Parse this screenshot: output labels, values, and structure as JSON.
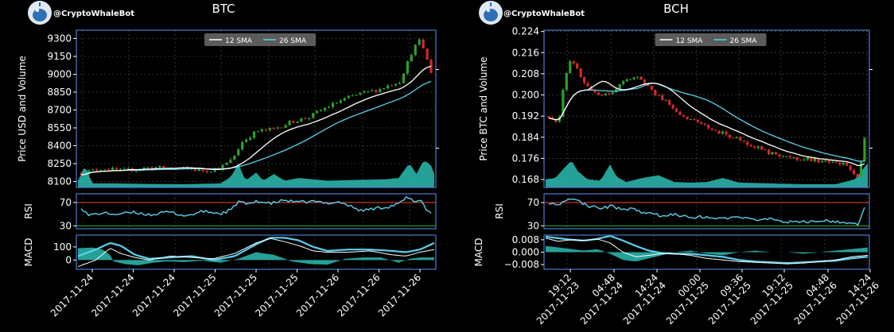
{
  "colors": {
    "background": "#000000",
    "frame": "#4a7bd0",
    "text": "#ffffff",
    "grid": "#5a5a5a",
    "up": "#2ca02c",
    "down": "#d62728",
    "sma12": "#ffffff",
    "sma26": "#5ad1ee",
    "volume": "#29b2a8",
    "rsi_line": "#5ad1ee",
    "rsi_overbought": "#c0392b",
    "rsi_oversold": "#2ca02c",
    "macd_hist": "#29b2a8",
    "macd_line": "#ffffff",
    "signal_line": "#5ad1ee"
  },
  "icons": {
    "logo": "whale-robot-logo"
  },
  "chart_data": [
    {
      "id": "btc",
      "type": "candlestick",
      "brand": "@CryptoWhaleBot",
      "title": "BTC",
      "ylabel": "Price USD and Volume",
      "yticks": [
        8100,
        8250,
        8400,
        8550,
        8700,
        8850,
        9000,
        9150,
        9300
      ],
      "ylim": [
        8050,
        9370
      ],
      "legend": {
        "position": "top-center",
        "entries": [
          "12 SMA",
          "26 SMA"
        ]
      },
      "xtick_labels": [
        "2017-11-24",
        "2017-11-24",
        "2017-11-24",
        "2017-11-25",
        "2017-11-25",
        "2017-11-25",
        "2017-11-26",
        "2017-11-26",
        "2017-11-26"
      ],
      "rsi": {
        "label": "RSI",
        "yticks": [
          30,
          70
        ],
        "ylim": [
          25,
          85
        ],
        "overbought": 70,
        "oversold": 30
      },
      "macd": {
        "label": "MACD",
        "yticks": [
          0,
          100
        ],
        "ylim": [
          -70,
          190
        ]
      },
      "price_path": [
        [
          0,
          8170
        ],
        [
          0.06,
          8210
        ],
        [
          0.12,
          8190
        ],
        [
          0.2,
          8220
        ],
        [
          0.28,
          8210
        ],
        [
          0.36,
          8190
        ],
        [
          0.4,
          8220
        ],
        [
          0.43,
          8280
        ],
        [
          0.46,
          8430
        ],
        [
          0.5,
          8520
        ],
        [
          0.55,
          8540
        ],
        [
          0.6,
          8600
        ],
        [
          0.65,
          8640
        ],
        [
          0.7,
          8720
        ],
        [
          0.75,
          8790
        ],
        [
          0.8,
          8840
        ],
        [
          0.85,
          8870
        ],
        [
          0.88,
          8910
        ],
        [
          0.91,
          8940
        ],
        [
          0.93,
          9080
        ],
        [
          0.95,
          9220
        ],
        [
          0.97,
          9290
        ],
        [
          0.985,
          9150
        ],
        [
          1.0,
          9020
        ]
      ],
      "volume_path": [
        [
          0,
          0.25
        ],
        [
          0.02,
          0.8
        ],
        [
          0.04,
          0.15
        ],
        [
          0.1,
          0.15
        ],
        [
          0.2,
          0.13
        ],
        [
          0.3,
          0.12
        ],
        [
          0.4,
          0.15
        ],
        [
          0.43,
          0.4
        ],
        [
          0.45,
          0.9
        ],
        [
          0.47,
          0.25
        ],
        [
          0.5,
          0.55
        ],
        [
          0.52,
          0.25
        ],
        [
          0.55,
          0.5
        ],
        [
          0.58,
          0.25
        ],
        [
          0.62,
          0.35
        ],
        [
          0.7,
          0.25
        ],
        [
          0.78,
          0.28
        ],
        [
          0.86,
          0.3
        ],
        [
          0.9,
          0.35
        ],
        [
          0.93,
          0.9
        ],
        [
          0.95,
          0.5
        ],
        [
          0.97,
          1.0
        ],
        [
          0.99,
          0.85
        ],
        [
          1.0,
          0.5
        ]
      ],
      "rsi_path": [
        [
          0,
          62
        ],
        [
          0.02,
          48
        ],
        [
          0.06,
          52
        ],
        [
          0.1,
          50
        ],
        [
          0.15,
          53
        ],
        [
          0.2,
          49
        ],
        [
          0.25,
          54
        ],
        [
          0.3,
          47
        ],
        [
          0.35,
          55
        ],
        [
          0.4,
          51
        ],
        [
          0.43,
          58
        ],
        [
          0.45,
          72
        ],
        [
          0.48,
          66
        ],
        [
          0.5,
          73
        ],
        [
          0.54,
          68
        ],
        [
          0.58,
          74
        ],
        [
          0.62,
          70
        ],
        [
          0.66,
          72
        ],
        [
          0.7,
          69
        ],
        [
          0.74,
          71
        ],
        [
          0.78,
          61
        ],
        [
          0.8,
          56
        ],
        [
          0.84,
          60
        ],
        [
          0.88,
          63
        ],
        [
          0.91,
          68
        ],
        [
          0.93,
          79
        ],
        [
          0.95,
          72
        ],
        [
          0.97,
          75
        ],
        [
          0.99,
          55
        ],
        [
          1.0,
          52
        ]
      ],
      "macd_hist_path": [
        [
          0,
          90
        ],
        [
          0.04,
          95
        ],
        [
          0.07,
          80
        ],
        [
          0.09,
          40
        ],
        [
          0.1,
          -10
        ],
        [
          0.13,
          -30
        ],
        [
          0.17,
          -40
        ],
        [
          0.21,
          -20
        ],
        [
          0.25,
          -10
        ],
        [
          0.3,
          -15
        ],
        [
          0.35,
          -5
        ],
        [
          0.4,
          -20
        ],
        [
          0.45,
          10
        ],
        [
          0.5,
          60
        ],
        [
          0.55,
          40
        ],
        [
          0.6,
          -10
        ],
        [
          0.65,
          -30
        ],
        [
          0.7,
          -35
        ],
        [
          0.75,
          10
        ],
        [
          0.8,
          20
        ],
        [
          0.85,
          20
        ],
        [
          0.9,
          -20
        ],
        [
          0.93,
          10
        ],
        [
          0.96,
          20
        ],
        [
          1.0,
          20
        ]
      ],
      "macd_line_path": [
        [
          0,
          -50
        ],
        [
          0.05,
          0
        ],
        [
          0.09,
          90
        ],
        [
          0.12,
          50
        ],
        [
          0.16,
          20
        ],
        [
          0.2,
          0
        ],
        [
          0.26,
          30
        ],
        [
          0.32,
          20
        ],
        [
          0.38,
          10
        ],
        [
          0.44,
          50
        ],
        [
          0.5,
          130
        ],
        [
          0.54,
          165
        ],
        [
          0.58,
          140
        ],
        [
          0.62,
          110
        ],
        [
          0.66,
          70
        ],
        [
          0.7,
          60
        ],
        [
          0.76,
          60
        ],
        [
          0.82,
          70
        ],
        [
          0.88,
          40
        ],
        [
          0.92,
          30
        ],
        [
          0.96,
          60
        ],
        [
          1.0,
          80
        ]
      ],
      "signal_line_path": [
        [
          0,
          30
        ],
        [
          0.05,
          80
        ],
        [
          0.09,
          130
        ],
        [
          0.12,
          110
        ],
        [
          0.16,
          40
        ],
        [
          0.2,
          10
        ],
        [
          0.26,
          20
        ],
        [
          0.32,
          30
        ],
        [
          0.38,
          0
        ],
        [
          0.44,
          30
        ],
        [
          0.5,
          120
        ],
        [
          0.54,
          170
        ],
        [
          0.58,
          170
        ],
        [
          0.62,
          150
        ],
        [
          0.66,
          100
        ],
        [
          0.7,
          70
        ],
        [
          0.76,
          80
        ],
        [
          0.82,
          80
        ],
        [
          0.88,
          70
        ],
        [
          0.92,
          60
        ],
        [
          0.96,
          80
        ],
        [
          1.0,
          130
        ]
      ]
    },
    {
      "id": "bch",
      "type": "candlestick",
      "brand": "@CryptoWhaleBot",
      "title": "BCH",
      "ylabel": "Price BTC and Volume",
      "yticks": [
        0.168,
        0.176,
        0.184,
        0.192,
        0.2,
        0.208,
        0.216,
        0.224
      ],
      "ytick_labels": [
        "0.168",
        "0.176",
        "0.184",
        "0.192",
        "0.200",
        "0.208",
        "0.216",
        "0.224"
      ],
      "ylim": [
        0.165,
        0.2245
      ],
      "legend": {
        "position": "top-center",
        "entries": [
          "12 SMA",
          "26 SMA"
        ]
      },
      "xtick_labels": [
        "19:12\n2017-11-23",
        "04:48\n2017-11-24",
        "14:24\n2017-11-24",
        "00:00\n2017-11-25",
        "09:36\n2017-11-25",
        "19:12\n2017-11-25",
        "04:48\n2017-11-26",
        "14:24\n2017-11-26"
      ],
      "rsi": {
        "label": "RSI",
        "yticks": [
          30,
          70
        ],
        "ylim": [
          25,
          85
        ],
        "overbought": 70,
        "oversold": 30
      },
      "macd": {
        "label": "MACD",
        "yticks": [
          0.008,
          0.0,
          -0.008
        ],
        "ytick_labels": [
          "0.008",
          "0.000",
          "−0.008"
        ],
        "ylim": [
          -0.011,
          0.011
        ]
      },
      "price_path": [
        [
          0,
          0.192
        ],
        [
          0.03,
          0.189
        ],
        [
          0.05,
          0.206
        ],
        [
          0.07,
          0.213
        ],
        [
          0.09,
          0.21
        ],
        [
          0.12,
          0.203
        ],
        [
          0.15,
          0.2
        ],
        [
          0.18,
          0.2
        ],
        [
          0.21,
          0.202
        ],
        [
          0.24,
          0.205
        ],
        [
          0.27,
          0.207
        ],
        [
          0.3,
          0.205
        ],
        [
          0.34,
          0.2
        ],
        [
          0.38,
          0.197
        ],
        [
          0.42,
          0.192
        ],
        [
          0.46,
          0.19
        ],
        [
          0.5,
          0.188
        ],
        [
          0.54,
          0.186
        ],
        [
          0.58,
          0.184
        ],
        [
          0.62,
          0.182
        ],
        [
          0.66,
          0.18
        ],
        [
          0.7,
          0.178
        ],
        [
          0.74,
          0.177
        ],
        [
          0.78,
          0.176
        ],
        [
          0.82,
          0.176
        ],
        [
          0.86,
          0.175
        ],
        [
          0.9,
          0.174
        ],
        [
          0.93,
          0.174
        ],
        [
          0.96,
          0.171
        ],
        [
          0.98,
          0.168
        ],
        [
          1.0,
          0.183
        ]
      ],
      "volume_path": [
        [
          0,
          0.3
        ],
        [
          0.03,
          0.35
        ],
        [
          0.06,
          0.75
        ],
        [
          0.08,
          1.0
        ],
        [
          0.1,
          0.6
        ],
        [
          0.13,
          0.3
        ],
        [
          0.17,
          0.25
        ],
        [
          0.2,
          0.85
        ],
        [
          0.22,
          0.4
        ],
        [
          0.25,
          0.2
        ],
        [
          0.3,
          0.35
        ],
        [
          0.35,
          0.45
        ],
        [
          0.4,
          0.2
        ],
        [
          0.45,
          0.18
        ],
        [
          0.5,
          0.2
        ],
        [
          0.55,
          0.35
        ],
        [
          0.6,
          0.18
        ],
        [
          0.7,
          0.15
        ],
        [
          0.8,
          0.12
        ],
        [
          0.9,
          0.12
        ],
        [
          0.96,
          0.3
        ],
        [
          1.0,
          0.9
        ]
      ],
      "rsi_path": [
        [
          0,
          70
        ],
        [
          0.03,
          67
        ],
        [
          0.05,
          73
        ],
        [
          0.07,
          78
        ],
        [
          0.1,
          70
        ],
        [
          0.13,
          63
        ],
        [
          0.17,
          60
        ],
        [
          0.2,
          64
        ],
        [
          0.23,
          58
        ],
        [
          0.27,
          60
        ],
        [
          0.3,
          52
        ],
        [
          0.35,
          48
        ],
        [
          0.4,
          50
        ],
        [
          0.45,
          44
        ],
        [
          0.5,
          46
        ],
        [
          0.55,
          42
        ],
        [
          0.6,
          44
        ],
        [
          0.65,
          40
        ],
        [
          0.7,
          42
        ],
        [
          0.74,
          36
        ],
        [
          0.78,
          38
        ],
        [
          0.82,
          36
        ],
        [
          0.86,
          40
        ],
        [
          0.9,
          38
        ],
        [
          0.93,
          34
        ],
        [
          0.96,
          36
        ],
        [
          0.98,
          33
        ],
        [
          1.0,
          62
        ]
      ],
      "macd_hist_path": [
        [
          0,
          0.004
        ],
        [
          0.04,
          0.003
        ],
        [
          0.08,
          0.002
        ],
        [
          0.12,
          0.001
        ],
        [
          0.16,
          0.002
        ],
        [
          0.2,
          -0.001
        ],
        [
          0.24,
          -0.005
        ],
        [
          0.28,
          -0.006
        ],
        [
          0.32,
          -0.004
        ],
        [
          0.36,
          -0.002
        ],
        [
          0.4,
          0.0
        ],
        [
          0.45,
          0.001
        ],
        [
          0.5,
          -0.001
        ],
        [
          0.55,
          -0.002
        ],
        [
          0.6,
          0.0
        ],
        [
          0.65,
          0.001
        ],
        [
          0.7,
          0.0
        ],
        [
          0.75,
          0.0
        ],
        [
          0.8,
          -0.001
        ],
        [
          0.85,
          0.0
        ],
        [
          0.9,
          0.001
        ],
        [
          0.95,
          0.002
        ],
        [
          1.0,
          0.003
        ]
      ],
      "macd_line_path": [
        [
          0,
          0.009
        ],
        [
          0.04,
          0.007
        ],
        [
          0.08,
          0.008
        ],
        [
          0.12,
          0.0075
        ],
        [
          0.16,
          0.0085
        ],
        [
          0.2,
          0.006
        ],
        [
          0.24,
          0.0
        ],
        [
          0.28,
          -0.003
        ],
        [
          0.32,
          -0.002
        ],
        [
          0.36,
          -0.001
        ],
        [
          0.4,
          -0.001
        ],
        [
          0.45,
          -0.002
        ],
        [
          0.5,
          -0.004
        ],
        [
          0.55,
          -0.005
        ],
        [
          0.6,
          -0.006
        ],
        [
          0.65,
          -0.0065
        ],
        [
          0.7,
          -0.007
        ],
        [
          0.75,
          -0.0075
        ],
        [
          0.8,
          -0.007
        ],
        [
          0.85,
          -0.006
        ],
        [
          0.9,
          -0.005
        ],
        [
          0.95,
          -0.003
        ],
        [
          1.0,
          -0.002
        ]
      ],
      "signal_line_path": [
        [
          0,
          0.01
        ],
        [
          0.04,
          0.009
        ],
        [
          0.08,
          0.008
        ],
        [
          0.12,
          0.0075
        ],
        [
          0.16,
          0.0085
        ],
        [
          0.2,
          0.0105
        ],
        [
          0.24,
          0.0075
        ],
        [
          0.28,
          0.004
        ],
        [
          0.32,
          0.001
        ],
        [
          0.36,
          -0.0005
        ],
        [
          0.4,
          -0.001
        ],
        [
          0.45,
          -0.001
        ],
        [
          0.5,
          -0.002
        ],
        [
          0.55,
          -0.003
        ],
        [
          0.6,
          -0.005
        ],
        [
          0.65,
          -0.006
        ],
        [
          0.7,
          -0.0065
        ],
        [
          0.75,
          -0.007
        ],
        [
          0.8,
          -0.0065
        ],
        [
          0.85,
          -0.006
        ],
        [
          0.9,
          -0.0055
        ],
        [
          0.95,
          -0.004
        ],
        [
          1.0,
          -0.003
        ]
      ]
    }
  ]
}
